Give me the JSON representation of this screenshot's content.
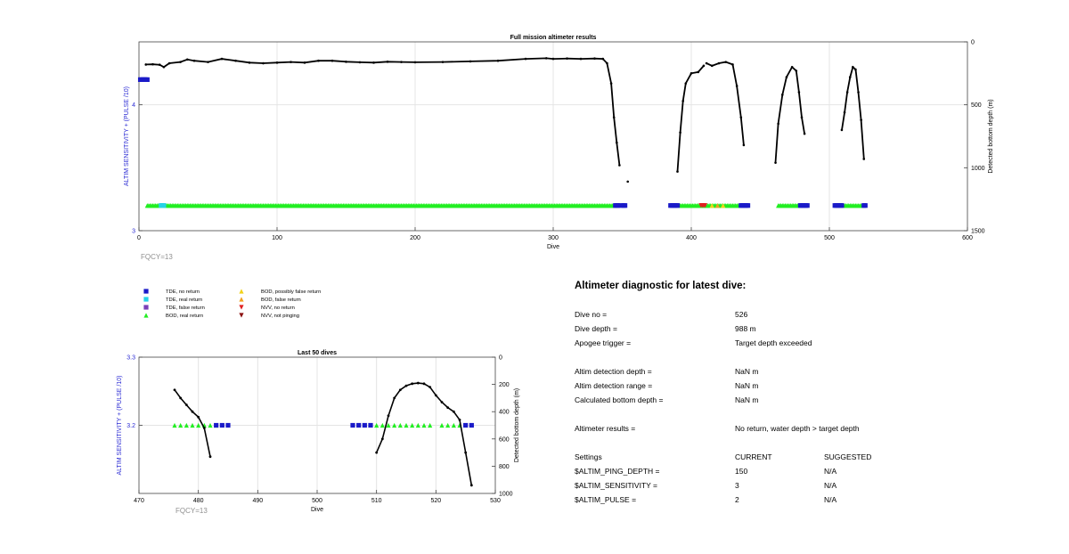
{
  "colors": {
    "left_axis": "#2b2bd4",
    "tde_no_return": "#1a1ac8",
    "tde_real_return": "#26d3e6",
    "tde_false_return": "#7a3fb8",
    "bod_real_return": "#22ee22",
    "bod_possibly_false": "#f2d21a",
    "bod_false_return": "#f0a020",
    "nvv_no_return": "#e02020",
    "nvv_not_pinging": "#8b1010",
    "depth_line": "#000000",
    "grid": "#e4e4e4"
  },
  "legend": [
    {
      "label": "TDE, no return",
      "marker": "square",
      "color": "#1a1ac8"
    },
    {
      "label": "TDE, real return",
      "marker": "square",
      "color": "#26d3e6"
    },
    {
      "label": "TDE, false return",
      "marker": "square",
      "color": "#7a3fb8"
    },
    {
      "label": "BOD, real return",
      "marker": "triangle-up",
      "color": "#22ee22"
    },
    {
      "label": "BOD, possibly false return",
      "marker": "triangle-up",
      "color": "#f2d21a"
    },
    {
      "label": "BOD, false return",
      "marker": "triangle-up",
      "color": "#f0a020"
    },
    {
      "label": "NVV, no return",
      "marker": "triangle-down",
      "color": "#e02020"
    },
    {
      "label": "NVV, not pinging",
      "marker": "triangle-down",
      "color": "#8b1010"
    }
  ],
  "diagnostic": {
    "title": "Altimeter diagnostic for latest dive:",
    "dive_no_label": "Dive no =",
    "dive_no": "526",
    "dive_depth_label": "Dive depth =",
    "dive_depth": "988 m",
    "apogee_label": "Apogee trigger =",
    "apogee": "Target depth exceeded",
    "altim_det_depth_label": "Altim detection depth =",
    "altim_det_depth": "NaN m",
    "altim_det_range_label": "Altim detection range =",
    "altim_det_range": "NaN m",
    "calc_bottom_label": "Calculated bottom depth =",
    "calc_bottom": "NaN m",
    "results_label": "Altimeter results =",
    "results": "No return, water depth > target depth",
    "settings_label": "Settings",
    "current_header": "CURRENT",
    "suggested_header": "SUGGESTED",
    "settings": [
      {
        "name": "$ALTIM_PING_DEPTH =",
        "current": "150",
        "suggested": "N/A"
      },
      {
        "name": "$ALTIM_SENSITIVITY =",
        "current": "3",
        "suggested": "N/A"
      },
      {
        "name": "$ALTIM_PULSE =",
        "current": "2",
        "suggested": "N/A"
      }
    ]
  },
  "chart_data": [
    {
      "type": "scatter",
      "title": "Full mission altimeter results",
      "xlabel": "Dive",
      "ylabel": "ALTIM SENSITIVITY + (PULSE /10)",
      "y2label": "Detected bottom depth (m)",
      "annotation": "FQCY=13",
      "xlim": [
        0,
        600
      ],
      "ylim": [
        3,
        4.5
      ],
      "y2lim": [
        1500,
        0
      ],
      "y2_reversed": true,
      "xticks": [
        0,
        100,
        200,
        300,
        400,
        500,
        600
      ],
      "yticks": [
        3,
        4
      ],
      "y2ticks": [
        0,
        500,
        1000,
        1500
      ],
      "grid": true,
      "series": [
        {
          "name": "TDE, no return",
          "marker": "square",
          "y": 4.2,
          "x": [
            1,
            2,
            3,
            4,
            5,
            6
          ]
        },
        {
          "name": "BOD, real return",
          "marker": "triangle-up",
          "y": 3.2,
          "segments": [
            [
              6,
              344
            ],
            [
              392,
              435
            ],
            [
              463,
              478
            ],
            [
              510,
              524
            ]
          ]
        },
        {
          "name": "TDE, real return",
          "marker": "square",
          "y": 3.2,
          "x": [
            16,
            17,
            18
          ]
        },
        {
          "name": "TDE, no return",
          "marker": "square",
          "y": 3.2,
          "x": [
            345,
            346,
            347,
            349,
            351,
            352,
            385,
            386,
            387,
            388,
            389,
            390,
            436,
            437,
            438,
            439,
            440,
            441,
            479,
            480,
            481,
            482,
            483,
            484,
            504,
            505,
            506,
            507,
            508,
            509,
            525,
            526
          ]
        },
        {
          "name": "NVV, no return",
          "marker": "triangle-down",
          "y": 3.2,
          "x": [
            407,
            408,
            409,
            410
          ]
        },
        {
          "name": "BOD, possibly false return",
          "marker": "triangle-up",
          "y": 3.2,
          "x": [
            415,
            423
          ]
        },
        {
          "name": "BOD, false return",
          "marker": "triangle-up",
          "y": 3.2,
          "x": [
            419
          ]
        }
      ],
      "depth": [
        {
          "x": 5,
          "y": 180
        },
        {
          "x": 10,
          "y": 178
        },
        {
          "x": 15,
          "y": 182
        },
        {
          "x": 18,
          "y": 200
        },
        {
          "x": 22,
          "y": 170
        },
        {
          "x": 30,
          "y": 160
        },
        {
          "x": 35,
          "y": 140
        },
        {
          "x": 40,
          "y": 150
        },
        {
          "x": 50,
          "y": 160
        },
        {
          "x": 60,
          "y": 135
        },
        {
          "x": 70,
          "y": 150
        },
        {
          "x": 80,
          "y": 165
        },
        {
          "x": 90,
          "y": 170
        },
        {
          "x": 100,
          "y": 165
        },
        {
          "x": 110,
          "y": 160
        },
        {
          "x": 120,
          "y": 165
        },
        {
          "x": 130,
          "y": 150
        },
        {
          "x": 140,
          "y": 150
        },
        {
          "x": 150,
          "y": 158
        },
        {
          "x": 160,
          "y": 162
        },
        {
          "x": 170,
          "y": 165
        },
        {
          "x": 180,
          "y": 158
        },
        {
          "x": 190,
          "y": 160
        },
        {
          "x": 200,
          "y": 162
        },
        {
          "x": 220,
          "y": 160
        },
        {
          "x": 240,
          "y": 155
        },
        {
          "x": 260,
          "y": 150
        },
        {
          "x": 280,
          "y": 135
        },
        {
          "x": 295,
          "y": 130
        },
        {
          "x": 300,
          "y": 135
        },
        {
          "x": 310,
          "y": 132
        },
        {
          "x": 320,
          "y": 135
        },
        {
          "x": 330,
          "y": 132
        },
        {
          "x": 336,
          "y": 135
        },
        {
          "x": 339,
          "y": 170
        },
        {
          "x": 342,
          "y": 330
        },
        {
          "x": 344,
          "y": 600
        },
        {
          "x": 346,
          "y": 800
        },
        {
          "x": 348,
          "y": 980
        },
        {
          "break": true
        },
        {
          "x": 354,
          "y": 1110
        },
        {
          "break": true
        },
        {
          "x": 390,
          "y": 1030
        },
        {
          "x": 392,
          "y": 720
        },
        {
          "x": 394,
          "y": 470
        },
        {
          "x": 396,
          "y": 330
        },
        {
          "x": 400,
          "y": 250
        },
        {
          "x": 405,
          "y": 240
        },
        {
          "x": 409,
          "y": 190
        },
        {
          "break": true
        },
        {
          "x": 411,
          "y": 170
        },
        {
          "x": 415,
          "y": 190
        },
        {
          "x": 420,
          "y": 170
        },
        {
          "x": 425,
          "y": 160
        },
        {
          "x": 430,
          "y": 180
        },
        {
          "x": 433,
          "y": 350
        },
        {
          "x": 436,
          "y": 600
        },
        {
          "x": 438,
          "y": 820
        },
        {
          "break": true
        },
        {
          "x": 461,
          "y": 960
        },
        {
          "x": 463,
          "y": 650
        },
        {
          "x": 466,
          "y": 420
        },
        {
          "x": 469,
          "y": 280
        },
        {
          "x": 473,
          "y": 200
        },
        {
          "x": 476,
          "y": 230
        },
        {
          "x": 478,
          "y": 400
        },
        {
          "x": 480,
          "y": 600
        },
        {
          "x": 482,
          "y": 730
        },
        {
          "break": true
        },
        {
          "x": 509,
          "y": 700
        },
        {
          "x": 511,
          "y": 560
        },
        {
          "x": 513,
          "y": 400
        },
        {
          "x": 515,
          "y": 280
        },
        {
          "x": 517,
          "y": 200
        },
        {
          "x": 519,
          "y": 220
        },
        {
          "x": 521,
          "y": 400
        },
        {
          "x": 523,
          "y": 620
        },
        {
          "x": 525,
          "y": 930
        }
      ]
    },
    {
      "type": "scatter",
      "title": "Last 50 dives",
      "xlabel": "Dive",
      "ylabel": "ALTIM SENSITIVITY + (PULSE /10)",
      "y2label": "Detected bottom depth (m)",
      "annotation": "FQCY=13",
      "xlim": [
        470,
        530
      ],
      "ylim": [
        3.1,
        3.3
      ],
      "y2lim": [
        1000,
        0
      ],
      "y2_reversed": true,
      "xticks": [
        470,
        480,
        490,
        500,
        510,
        520,
        530
      ],
      "yticks": [
        3.2,
        3.3
      ],
      "y2ticks": [
        0,
        200,
        400,
        600,
        800,
        1000
      ],
      "grid": true,
      "series": [
        {
          "name": "BOD, real return",
          "marker": "triangle-up",
          "y": 3.2,
          "x": [
            476,
            477,
            478,
            479,
            480,
            481,
            482,
            483,
            510,
            511,
            512,
            513,
            514,
            515,
            516,
            517,
            518,
            519,
            521,
            522,
            523,
            524
          ]
        },
        {
          "name": "TDE, no return",
          "marker": "square",
          "y": 3.2,
          "x": [
            483,
            484,
            485,
            506,
            507,
            508,
            509,
            525,
            526
          ]
        }
      ],
      "depth": [
        {
          "x": 476,
          "y": 240
        },
        {
          "x": 477,
          "y": 300
        },
        {
          "x": 478,
          "y": 350
        },
        {
          "x": 479,
          "y": 400
        },
        {
          "x": 480,
          "y": 440
        },
        {
          "x": 481,
          "y": 520
        },
        {
          "x": 482,
          "y": 730
        },
        {
          "break": true
        },
        {
          "x": 510,
          "y": 700
        },
        {
          "x": 511,
          "y": 600
        },
        {
          "x": 512,
          "y": 430
        },
        {
          "x": 513,
          "y": 300
        },
        {
          "x": 514,
          "y": 240
        },
        {
          "x": 515,
          "y": 210
        },
        {
          "x": 516,
          "y": 195
        },
        {
          "x": 517,
          "y": 190
        },
        {
          "x": 518,
          "y": 195
        },
        {
          "x": 519,
          "y": 220
        },
        {
          "x": 520,
          "y": 280
        },
        {
          "x": 521,
          "y": 330
        },
        {
          "x": 522,
          "y": 370
        },
        {
          "x": 523,
          "y": 400
        },
        {
          "x": 524,
          "y": 460
        },
        {
          "x": 525,
          "y": 700
        },
        {
          "x": 526,
          "y": 940
        }
      ]
    }
  ]
}
